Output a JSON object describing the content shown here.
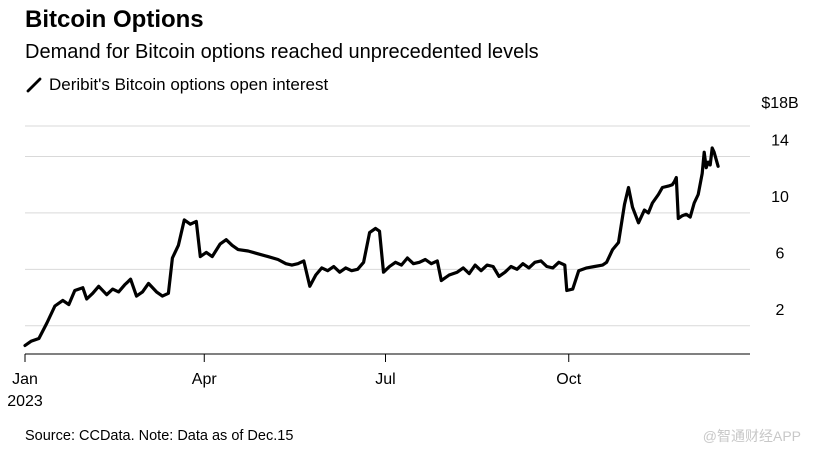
{
  "header": {
    "title": "Bitcoin Options",
    "subtitle": "Demand for Bitcoin options reached unprecedented levels"
  },
  "legend": {
    "label": "Deribit's Bitcoin options open interest"
  },
  "footer": {
    "source": "Source: CCData. Note: Data as of Dec.15",
    "watermark": "@智通财经APP"
  },
  "colors": {
    "line": "#000000",
    "grid": "#d9d9d9",
    "axis": "#000000"
  },
  "chart_data": {
    "type": "line",
    "title": "Bitcoin Options",
    "subtitle": "Demand for Bitcoin options reached unprecedented levels",
    "ylabel": "",
    "xlabel": "",
    "ylim": [
      0,
      18
    ],
    "xlim": [
      "2023-01-01",
      "2023-12-31"
    ],
    "y_ticks": [
      {
        "value": 2,
        "label": "2"
      },
      {
        "value": 6,
        "label": "6"
      },
      {
        "value": 10,
        "label": "10"
      },
      {
        "value": 14,
        "label": "14"
      },
      {
        "value": 18,
        "label": "$18B"
      }
    ],
    "x_ticks": [
      {
        "date": "2023-01-01",
        "label": "Jan",
        "sublabel": "2023"
      },
      {
        "date": "2023-04-01",
        "label": "Apr"
      },
      {
        "date": "2023-07-01",
        "label": "Jul"
      },
      {
        "date": "2023-10-01",
        "label": "Oct"
      }
    ],
    "grid": true,
    "legend_position": "top-left",
    "series": [
      {
        "name": "Deribit's Bitcoin options open interest",
        "points": [
          [
            "2023-01-01",
            0.6
          ],
          [
            "2023-01-04",
            0.9
          ],
          [
            "2023-01-08",
            1.1
          ],
          [
            "2023-01-12",
            2.2
          ],
          [
            "2023-01-16",
            3.4
          ],
          [
            "2023-01-20",
            3.8
          ],
          [
            "2023-01-23",
            3.5
          ],
          [
            "2023-01-26",
            4.5
          ],
          [
            "2023-01-30",
            4.7
          ],
          [
            "2023-02-01",
            3.9
          ],
          [
            "2023-02-04",
            4.3
          ],
          [
            "2023-02-07",
            4.8
          ],
          [
            "2023-02-11",
            4.2
          ],
          [
            "2023-02-14",
            4.6
          ],
          [
            "2023-02-17",
            4.4
          ],
          [
            "2023-02-20",
            4.9
          ],
          [
            "2023-02-23",
            5.3
          ],
          [
            "2023-02-26",
            4.1
          ],
          [
            "2023-03-01",
            4.4
          ],
          [
            "2023-03-04",
            5.0
          ],
          [
            "2023-03-08",
            4.4
          ],
          [
            "2023-03-11",
            4.1
          ],
          [
            "2023-03-14",
            4.3
          ],
          [
            "2023-03-16",
            6.8
          ],
          [
            "2023-03-19",
            7.7
          ],
          [
            "2023-03-22",
            9.5
          ],
          [
            "2023-03-25",
            9.2
          ],
          [
            "2023-03-28",
            9.4
          ],
          [
            "2023-03-30",
            6.9
          ],
          [
            "2023-04-02",
            7.2
          ],
          [
            "2023-04-05",
            6.9
          ],
          [
            "2023-04-09",
            7.8
          ],
          [
            "2023-04-12",
            8.1
          ],
          [
            "2023-04-15",
            7.7
          ],
          [
            "2023-04-18",
            7.4
          ],
          [
            "2023-04-23",
            7.3
          ],
          [
            "2023-04-28",
            7.1
          ],
          [
            "2023-05-03",
            6.9
          ],
          [
            "2023-05-08",
            6.7
          ],
          [
            "2023-05-12",
            6.4
          ],
          [
            "2023-05-15",
            6.3
          ],
          [
            "2023-05-18",
            6.4
          ],
          [
            "2023-05-21",
            6.6
          ],
          [
            "2023-05-24",
            4.8
          ],
          [
            "2023-05-27",
            5.6
          ],
          [
            "2023-05-30",
            6.1
          ],
          [
            "2023-06-02",
            5.9
          ],
          [
            "2023-06-05",
            6.2
          ],
          [
            "2023-06-08",
            5.8
          ],
          [
            "2023-06-11",
            6.1
          ],
          [
            "2023-06-14",
            5.9
          ],
          [
            "2023-06-17",
            6.0
          ],
          [
            "2023-06-20",
            6.5
          ],
          [
            "2023-06-23",
            8.6
          ],
          [
            "2023-06-26",
            8.9
          ],
          [
            "2023-06-28",
            8.7
          ],
          [
            "2023-06-30",
            5.8
          ],
          [
            "2023-07-03",
            6.2
          ],
          [
            "2023-07-06",
            6.5
          ],
          [
            "2023-07-09",
            6.3
          ],
          [
            "2023-07-12",
            6.8
          ],
          [
            "2023-07-15",
            6.4
          ],
          [
            "2023-07-18",
            6.5
          ],
          [
            "2023-07-21",
            6.7
          ],
          [
            "2023-07-24",
            6.4
          ],
          [
            "2023-07-27",
            6.6
          ],
          [
            "2023-07-29",
            5.2
          ],
          [
            "2023-08-02",
            5.6
          ],
          [
            "2023-08-06",
            5.8
          ],
          [
            "2023-08-09",
            6.1
          ],
          [
            "2023-08-12",
            5.7
          ],
          [
            "2023-08-15",
            6.3
          ],
          [
            "2023-08-18",
            5.9
          ],
          [
            "2023-08-21",
            6.3
          ],
          [
            "2023-08-24",
            6.2
          ],
          [
            "2023-08-27",
            5.5
          ],
          [
            "2023-08-30",
            5.8
          ],
          [
            "2023-09-02",
            6.2
          ],
          [
            "2023-09-05",
            6.0
          ],
          [
            "2023-09-08",
            6.4
          ],
          [
            "2023-09-11",
            6.1
          ],
          [
            "2023-09-14",
            6.5
          ],
          [
            "2023-09-17",
            6.6
          ],
          [
            "2023-09-20",
            6.2
          ],
          [
            "2023-09-23",
            6.1
          ],
          [
            "2023-09-26",
            6.5
          ],
          [
            "2023-09-29",
            6.3
          ],
          [
            "2023-09-30",
            4.5
          ],
          [
            "2023-10-03",
            4.6
          ],
          [
            "2023-10-06",
            5.9
          ],
          [
            "2023-10-10",
            6.1
          ],
          [
            "2023-10-14",
            6.2
          ],
          [
            "2023-10-18",
            6.3
          ],
          [
            "2023-10-20",
            6.5
          ],
          [
            "2023-10-23",
            7.4
          ],
          [
            "2023-10-26",
            7.9
          ],
          [
            "2023-10-29",
            10.6
          ],
          [
            "2023-10-31",
            11.8
          ],
          [
            "2023-11-02",
            10.4
          ],
          [
            "2023-11-05",
            9.3
          ],
          [
            "2023-11-08",
            10.2
          ],
          [
            "2023-11-10",
            10.0
          ],
          [
            "2023-11-12",
            10.7
          ],
          [
            "2023-11-15",
            11.3
          ],
          [
            "2023-11-17",
            11.8
          ],
          [
            "2023-11-20",
            11.9
          ],
          [
            "2023-11-22",
            12.0
          ],
          [
            "2023-11-23",
            12.2
          ],
          [
            "2023-11-24",
            12.5
          ],
          [
            "2023-11-25",
            9.6
          ],
          [
            "2023-11-27",
            9.8
          ],
          [
            "2023-11-29",
            9.9
          ],
          [
            "2023-12-01",
            9.7
          ],
          [
            "2023-12-03",
            10.7
          ],
          [
            "2023-12-05",
            11.3
          ],
          [
            "2023-12-07",
            12.8
          ],
          [
            "2023-12-08",
            14.3
          ],
          [
            "2023-12-09",
            13.2
          ],
          [
            "2023-12-10",
            13.6
          ],
          [
            "2023-12-11",
            13.4
          ],
          [
            "2023-12-12",
            14.6
          ],
          [
            "2023-12-13",
            14.3
          ],
          [
            "2023-12-15",
            13.3
          ]
        ]
      }
    ]
  }
}
